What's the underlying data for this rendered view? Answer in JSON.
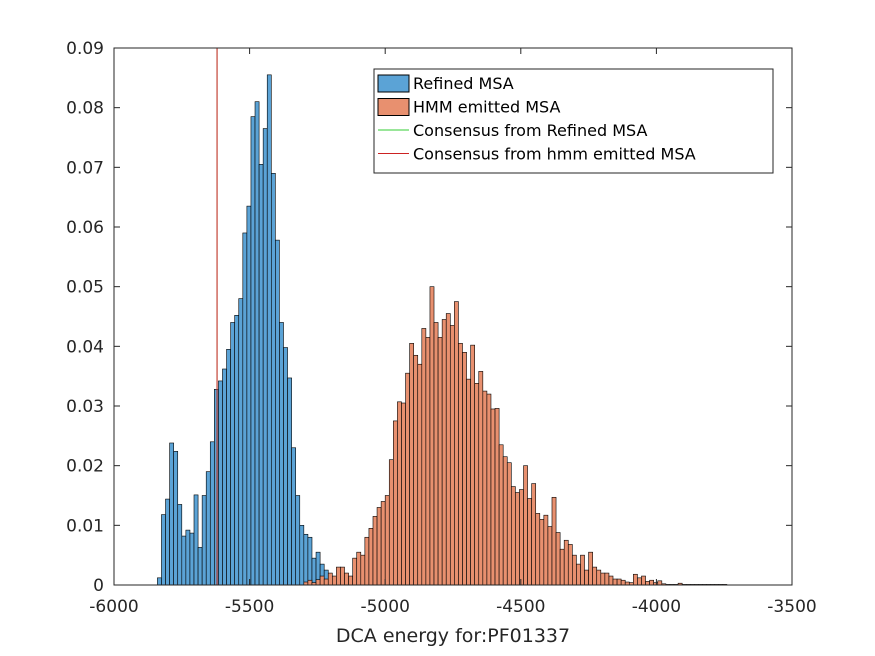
{
  "chart_data": {
    "type": "bar",
    "xlabel": "DCA energy for:PF01337",
    "ylabel": "",
    "title": "",
    "xlim": [
      -6000,
      -3500
    ],
    "ylim": [
      0,
      0.09
    ],
    "xticks": [
      "-6000",
      "-5500",
      "-5000",
      "-4500",
      "-4000",
      "-3500"
    ],
    "yticks": [
      "0",
      "0.01",
      "0.02",
      "0.03",
      "0.04",
      "0.05",
      "0.06",
      "0.07",
      "0.08",
      "0.09"
    ],
    "grid": false,
    "legend_position": "top-right",
    "series": [
      {
        "name": "Refined MSA",
        "color": "#5ba3d6",
        "edges": [
          -5840,
          -5825,
          -5810,
          -5795,
          -5780,
          -5765,
          -5750,
          -5735,
          -5720,
          -5705,
          -5690,
          -5675,
          -5660,
          -5645,
          -5630,
          -5615,
          -5600,
          -5585,
          -5570,
          -5555,
          -5540,
          -5525,
          -5510,
          -5495,
          -5480,
          -5465,
          -5450,
          -5435,
          -5420,
          -5405,
          -5390,
          -5375,
          -5360,
          -5345,
          -5330,
          -5315,
          -5300,
          -5285,
          -5270,
          -5255,
          -5240,
          -5225,
          -5210,
          -5195,
          -5180
        ],
        "values": [
          0.0012,
          0.0118,
          0.0144,
          0.0238,
          0.0224,
          0.0135,
          0.0082,
          0.0092,
          0.0087,
          0.0151,
          0.0063,
          0.015,
          0.019,
          0.024,
          0.0328,
          0.0342,
          0.0362,
          0.0395,
          0.044,
          0.0452,
          0.048,
          0.059,
          0.0635,
          0.0785,
          0.081,
          0.0705,
          0.0765,
          0.0855,
          0.069,
          0.0578,
          0.044,
          0.0398,
          0.0347,
          0.023,
          0.015,
          0.01,
          0.0085,
          0.008,
          0.0045,
          0.0055,
          0.0035,
          0.0025,
          0.0008,
          0.001
        ]
      },
      {
        "name": "HMM emitted MSA",
        "color": "#e8906f",
        "edges": [
          -5300,
          -5285,
          -5270,
          -5255,
          -5240,
          -5225,
          -5210,
          -5195,
          -5180,
          -5165,
          -5150,
          -5135,
          -5120,
          -5105,
          -5090,
          -5075,
          -5060,
          -5045,
          -5030,
          -5015,
          -5000,
          -4985,
          -4970,
          -4955,
          -4940,
          -4925,
          -4910,
          -4895,
          -4880,
          -4865,
          -4850,
          -4835,
          -4820,
          -4805,
          -4790,
          -4775,
          -4760,
          -4745,
          -4730,
          -4715,
          -4700,
          -4685,
          -4670,
          -4655,
          -4640,
          -4625,
          -4610,
          -4595,
          -4580,
          -4565,
          -4550,
          -4535,
          -4520,
          -4505,
          -4490,
          -4475,
          -4460,
          -4445,
          -4430,
          -4415,
          -4400,
          -4385,
          -4370,
          -4355,
          -4340,
          -4325,
          -4310,
          -4295,
          -4280,
          -4265,
          -4250,
          -4235,
          -4220,
          -4205,
          -4190,
          -4175,
          -4160,
          -4145,
          -4130,
          -4115,
          -4100,
          -4085,
          -4070,
          -4055,
          -4040,
          -4025,
          -4010,
          -3995,
          -3980,
          -3965,
          -3950,
          -3935,
          -3920,
          -3905,
          -3890,
          -3875,
          -3860,
          -3845,
          -3830,
          -3815,
          -3800,
          -3785,
          -3770,
          -3755,
          -3740
        ],
        "values": [
          0.0005,
          0.0008,
          0.0004,
          0.0009,
          0.0015,
          0.001,
          0.002,
          0.0015,
          0.003,
          0.003,
          0.002,
          0.0015,
          0.0045,
          0.0055,
          0.005,
          0.008,
          0.0095,
          0.0115,
          0.013,
          0.014,
          0.015,
          0.021,
          0.0275,
          0.0307,
          0.0305,
          0.0355,
          0.0405,
          0.0385,
          0.037,
          0.043,
          0.0415,
          0.05,
          0.044,
          0.0415,
          0.0445,
          0.0455,
          0.0435,
          0.0475,
          0.0405,
          0.039,
          0.0345,
          0.0402,
          0.0338,
          0.0358,
          0.0325,
          0.032,
          0.0295,
          0.0296,
          0.0235,
          0.0215,
          0.0205,
          0.0165,
          0.0155,
          0.016,
          0.02,
          0.0145,
          0.017,
          0.012,
          0.011,
          0.0117,
          0.0098,
          0.0147,
          0.0088,
          0.006,
          0.0075,
          0.0068,
          0.005,
          0.0035,
          0.005,
          0.0025,
          0.0055,
          0.003,
          0.0025,
          0.002,
          0.002,
          0.0015,
          0.001,
          0.001,
          0.0008,
          0.0005,
          0.0004,
          0.0018,
          0.0012,
          0.0015,
          0.0006,
          0.0008,
          0.0004,
          0.0007,
          0.0002,
          0.0001,
          0.0001,
          0.0001,
          0.0003,
          0.0001,
          0.0001,
          0.0001,
          0.0001,
          0.0001,
          0.0001,
          0.0001,
          0.0001,
          0.0001,
          0.0001,
          0.0001
        ]
      },
      {
        "name": "Consensus from Refined MSA",
        "type": "vline",
        "color": "#33cc33",
        "x": -5620
      },
      {
        "name": "Consensus from hmm emitted MSA",
        "type": "vline",
        "color": "#cc2222",
        "x": -5620
      }
    ]
  }
}
